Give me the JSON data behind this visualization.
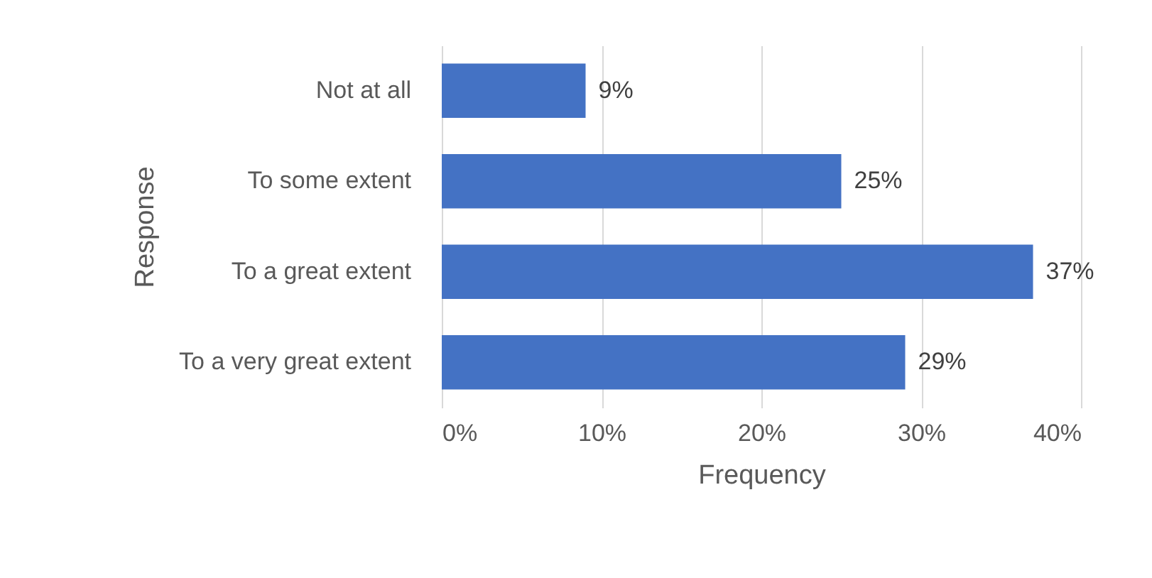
{
  "chart_data": {
    "type": "bar",
    "orientation": "horizontal",
    "xlabel": "Frequency",
    "ylabel": "Response",
    "categories": [
      "Not at all",
      "To some extent",
      "To a great extent",
      "To a very great extent"
    ],
    "values": [
      9,
      25,
      37,
      29
    ],
    "value_labels": [
      "9%",
      "25%",
      "37%",
      "29%"
    ],
    "color": "#4472c4",
    "xlim": [
      0,
      40
    ],
    "xticks": [
      {
        "value": 0,
        "label": "0%"
      },
      {
        "value": 10,
        "label": "10%"
      },
      {
        "value": 20,
        "label": "20%"
      },
      {
        "value": 30,
        "label": "30%"
      },
      {
        "value": 40,
        "label": "40%"
      }
    ],
    "grid": "x"
  }
}
